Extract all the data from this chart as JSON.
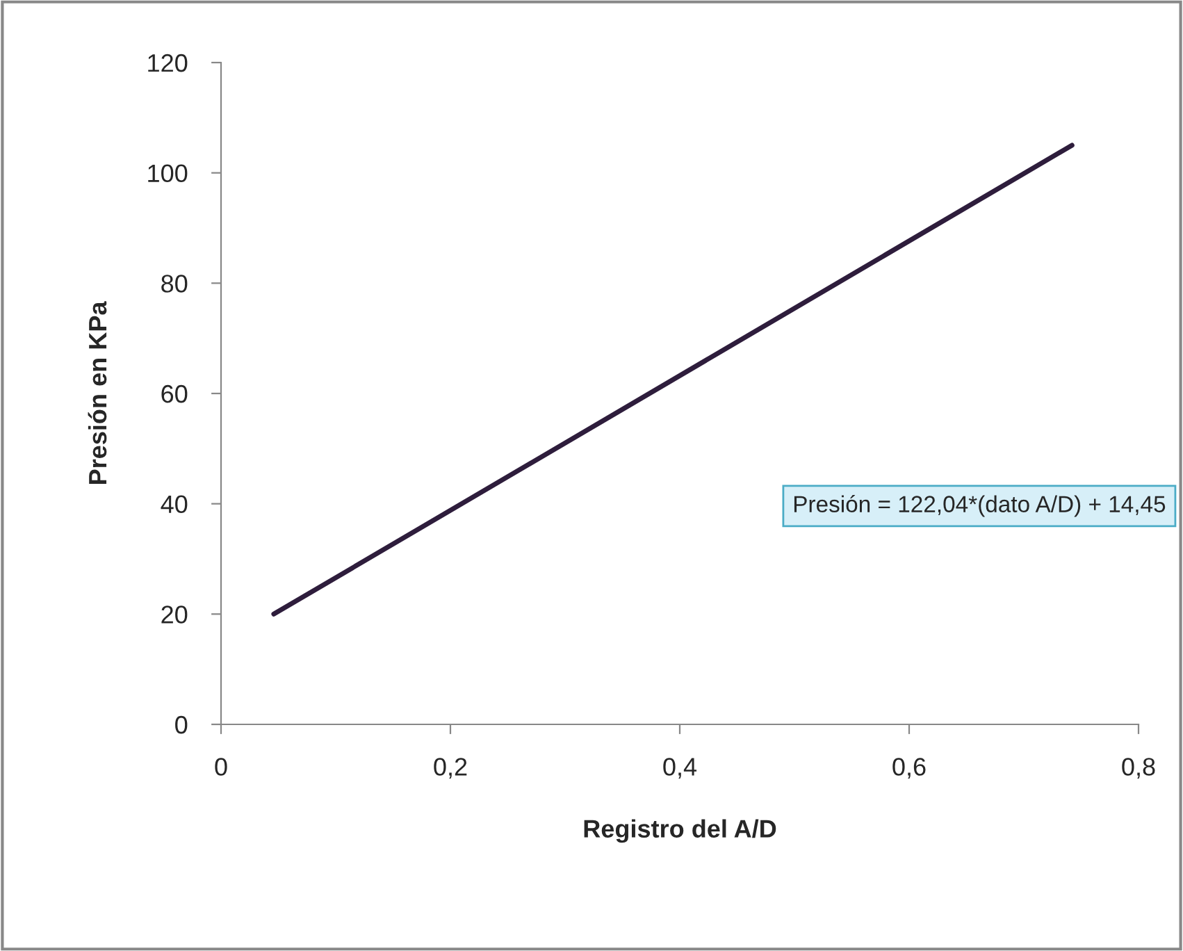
{
  "chart_data": {
    "type": "line",
    "xlabel": "Registro del A/D",
    "ylabel": "Presión en KPa",
    "series": [
      {
        "color": "#2e1d3c",
        "x": [
          0.046,
          0.742
        ],
        "values": [
          20,
          105
        ]
      }
    ],
    "xlim": [
      0,
      0.8
    ],
    "xticks": [
      0,
      {
        "value": 0.2,
        "label": "0,2"
      },
      {
        "value": 0.4,
        "label": "0,4"
      },
      {
        "value": 0.6,
        "label": "0,6"
      },
      {
        "value": 0.8,
        "label": "0,8"
      }
    ],
    "ylim": [
      0,
      120
    ],
    "yticks": [
      0,
      20,
      40,
      60,
      80,
      100,
      120
    ],
    "annotations": [
      "Presión = 122,04*(dato A/D) + 14,45"
    ],
    "grid": false,
    "legend": false,
    "marker": "none",
    "line_style": "solid"
  }
}
